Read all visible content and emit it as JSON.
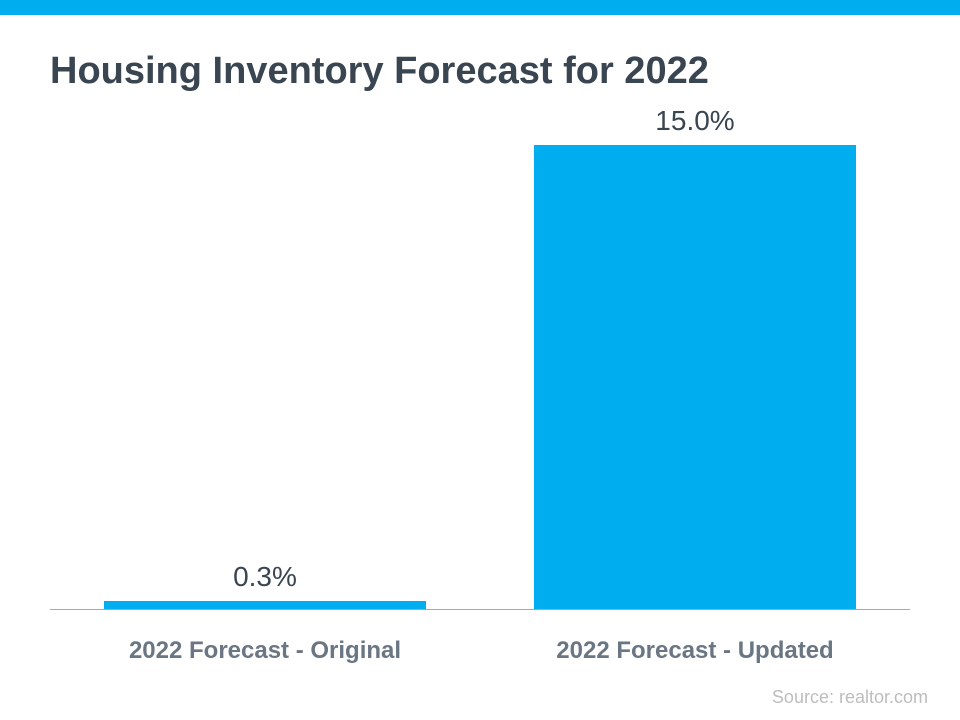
{
  "title": "Housing Inventory Forecast for 2022",
  "chart": {
    "type": "bar",
    "background_color": "#ffffff",
    "accent_color": "#00aeef",
    "title_color": "#3a4552",
    "label_color": "#3a4552",
    "xlabel_color": "#6a7684",
    "source_color": "#bdbdbd",
    "baseline_color": "#a8a8a8",
    "title_fontsize": 38,
    "value_label_fontsize": 28,
    "xlabel_fontsize": 24,
    "source_fontsize": 18,
    "ylim": [
      0,
      15
    ],
    "bar_width_pct": 75,
    "bars": [
      {
        "category": "2022 Forecast - Original",
        "value": 0.3,
        "display_label": "0.3%",
        "color": "#00aeef"
      },
      {
        "category": "2022 Forecast - Updated",
        "value": 15.0,
        "display_label": "15.0%",
        "color": "#00aeef"
      }
    ]
  },
  "source_text": "Source: realtor.com"
}
